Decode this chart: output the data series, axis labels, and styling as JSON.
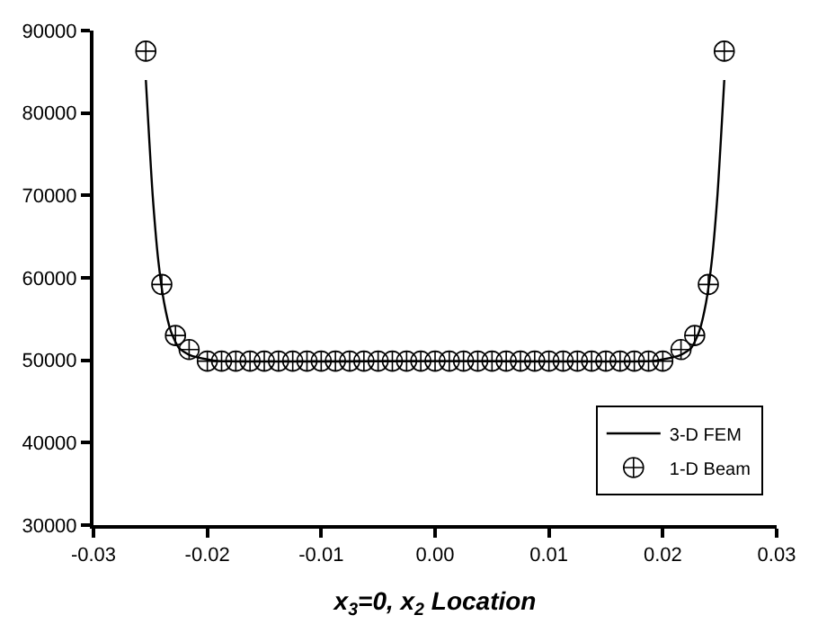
{
  "chart_data": {
    "type": "line",
    "xlabel": "x$_{3}$=0, x$_{2}$ Location",
    "xlim": [
      -0.03,
      0.03
    ],
    "ylim": [
      30000,
      90000
    ],
    "xticks": [
      -0.03,
      -0.02,
      -0.01,
      {
        "value": 0,
        "label": "0.00"
      },
      0.01,
      0.02,
      0.03
    ],
    "yticks": [
      30000,
      40000,
      50000,
      60000,
      70000,
      80000,
      90000
    ],
    "legend": "bottom right",
    "series": [
      {
        "name": "3-D FEM",
        "color": "#000000",
        "line_style": "solid",
        "marker": "none",
        "x": [
          -0.0254,
          -0.0248,
          -0.0243,
          -0.0238,
          -0.0232,
          -0.0225,
          -0.0215,
          -0.02,
          -0.019,
          0,
          0.019,
          0.02,
          0.0215,
          0.0225,
          0.0232,
          0.0238,
          0.0243,
          0.0248,
          0.0254
        ],
        "values": [
          84000,
          70000,
          62000,
          57000,
          53500,
          51500,
          50600,
          50100,
          49900,
          49900,
          49900,
          50100,
          50600,
          51500,
          53500,
          57000,
          62000,
          70000,
          84000
        ]
      },
      {
        "name": "1-D Beam",
        "type": "scatter",
        "color": "#000000",
        "marker": "cross",
        "x": [
          -0.0254,
          -0.024,
          -0.0228,
          -0.0216,
          -0.02,
          -0.01875,
          -0.0175,
          -0.01625,
          -0.015,
          -0.01375,
          -0.0125,
          -0.01125,
          -0.01,
          -0.00875,
          -0.0075,
          -0.00625,
          -0.005,
          -0.00375,
          -0.0025,
          -0.00125,
          0,
          0.00125,
          0.0025,
          0.00375,
          0.005,
          0.00625,
          0.0075,
          0.00875,
          0.01,
          0.01125,
          0.0125,
          0.01375,
          0.015,
          0.01625,
          0.0175,
          0.01875,
          0.02,
          0.0216,
          0.0228,
          0.024,
          0.0254
        ],
        "values": [
          87500,
          59200,
          53000,
          51300,
          49900,
          49900,
          49900,
          49900,
          49900,
          49900,
          49900,
          49900,
          49900,
          49900,
          49900,
          49900,
          49900,
          49900,
          49900,
          49900,
          49900,
          49900,
          49900,
          49900,
          49900,
          49900,
          49900,
          49900,
          49900,
          49900,
          49900,
          49900,
          49900,
          49900,
          49900,
          49900,
          49900,
          51300,
          53000,
          59200,
          87500
        ]
      }
    ]
  }
}
